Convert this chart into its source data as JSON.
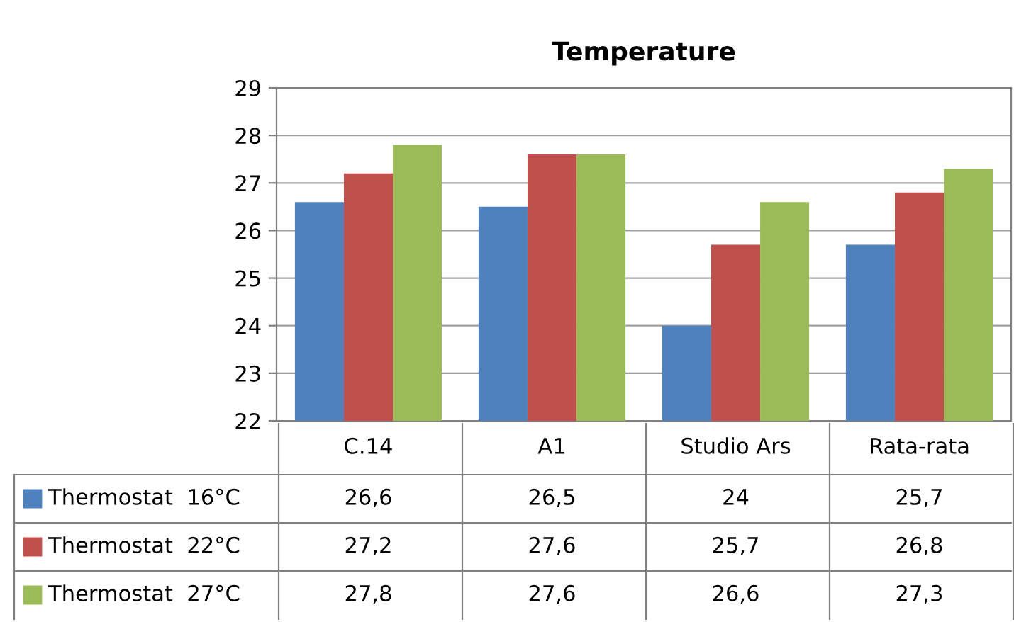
{
  "chart_data": {
    "type": "bar",
    "title": "Temperature",
    "categories": [
      "C.14",
      "A1",
      "Studio Ars",
      "Rata-rata"
    ],
    "series": [
      {
        "name": "Thermostat  16°C",
        "color": "#4f81bd",
        "values": [
          26.6,
          26.5,
          24,
          25.7
        ],
        "value_labels": [
          "26,6",
          "26,5",
          "24",
          "25,7"
        ]
      },
      {
        "name": "Thermostat  22°C",
        "color": "#c0504d",
        "values": [
          27.2,
          27.6,
          25.7,
          26.8
        ],
        "value_labels": [
          "27,2",
          "27,6",
          "25,7",
          "26,8"
        ]
      },
      {
        "name": "Thermostat  27°C",
        "color": "#9bbb59",
        "values": [
          27.8,
          27.6,
          26.6,
          27.3
        ],
        "value_labels": [
          "27,8",
          "27,6",
          "26,6",
          "27,3"
        ]
      }
    ],
    "ylim": [
      22,
      29
    ],
    "yticks": [
      22,
      23,
      24,
      25,
      26,
      27,
      28,
      29
    ],
    "grid": "y",
    "legend": "bottom left"
  }
}
